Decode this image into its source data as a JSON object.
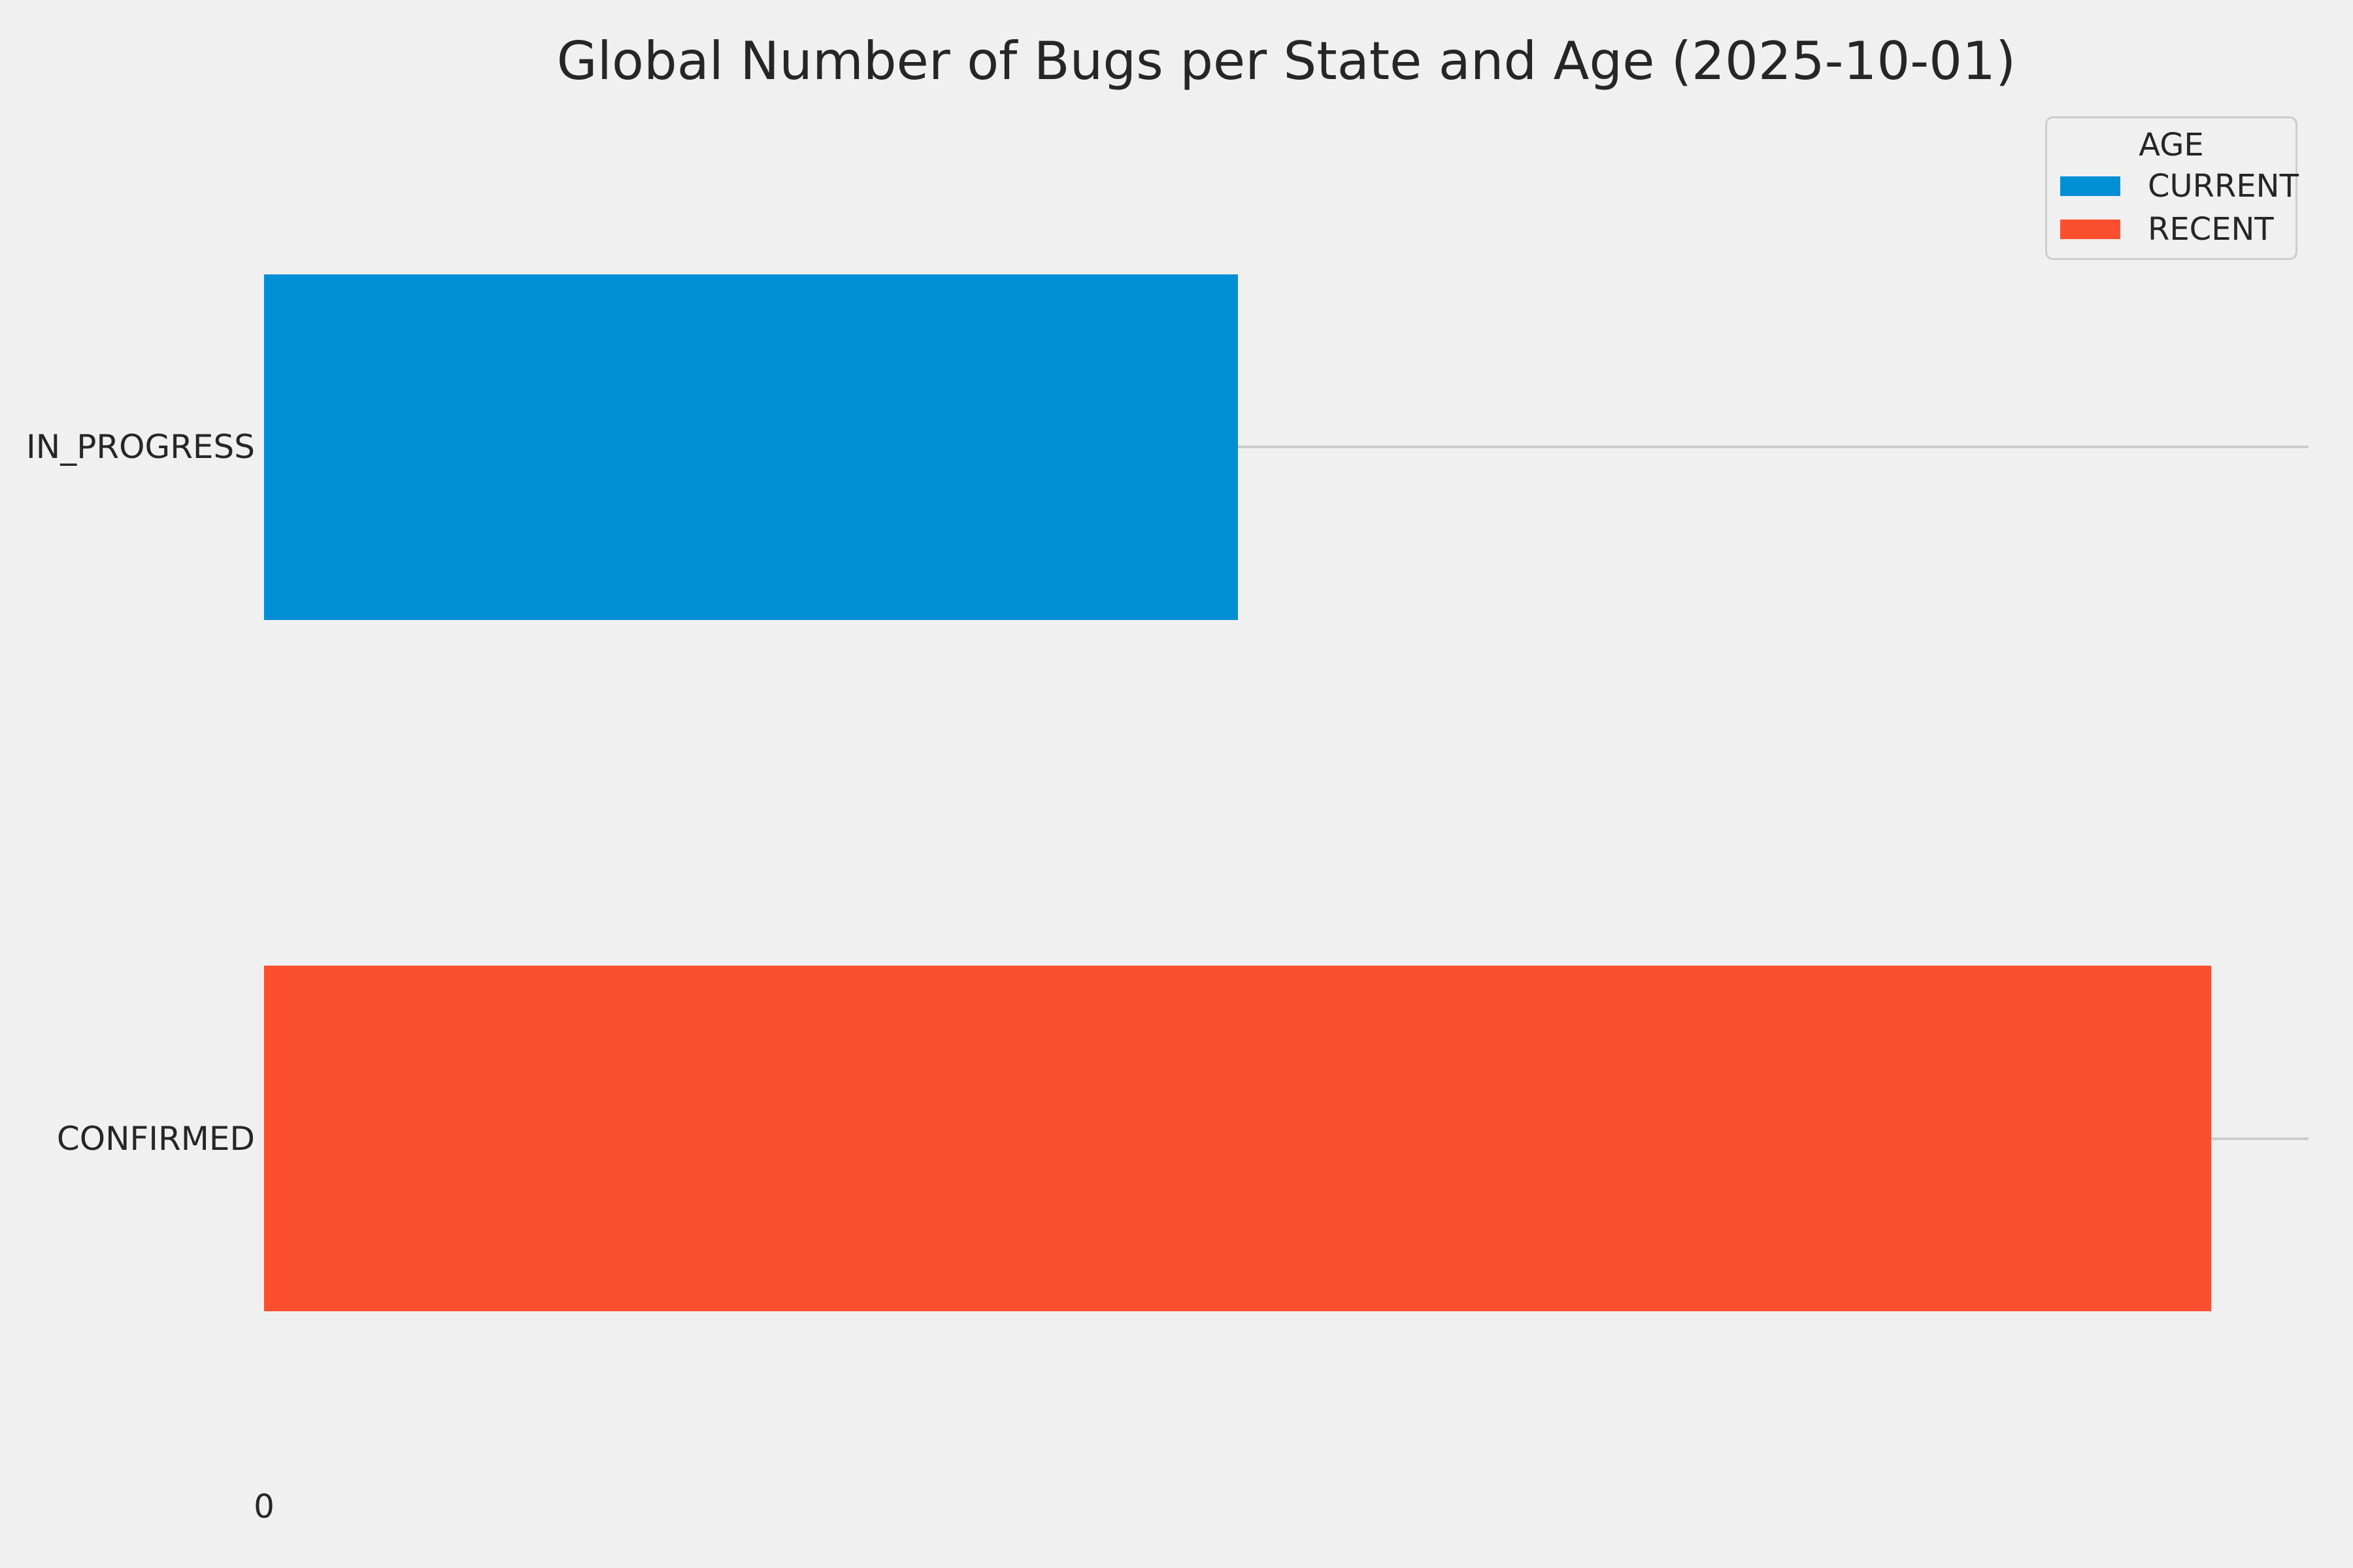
{
  "figure": {
    "background_color": "#f0f0f0",
    "text_color": "#262626",
    "grid_color": "#cbcbcb"
  },
  "legend": {
    "title": "AGE",
    "entries": [
      {
        "label": "CURRENT",
        "color": "#008fd5"
      },
      {
        "label": "RECENT",
        "color": "#fc4f30"
      }
    ]
  },
  "chart_data": {
    "type": "bar",
    "orientation": "horizontal",
    "title": "Global Number of Bugs per State and Age (2025-10-01)",
    "categories": [
      "IN_PROGRESS",
      "CONFIRMED"
    ],
    "series": [
      {
        "name": "CURRENT",
        "color": "#008fd5",
        "values": [
          1,
          0
        ]
      },
      {
        "name": "RECENT",
        "color": "#fc4f30",
        "values": [
          0,
          2
        ]
      }
    ],
    "xlabel": "",
    "ylabel": "",
    "xlim": [
      0,
      2.1
    ],
    "x_ticks": [
      {
        "label": "0",
        "value": 0
      }
    ],
    "grid": "y",
    "legend_position": "upper right",
    "values_note": "bars carry no numeric labels in the image; values estimated from bar lengths, CONFIRMED ~= 2x IN_PROGRESS"
  }
}
